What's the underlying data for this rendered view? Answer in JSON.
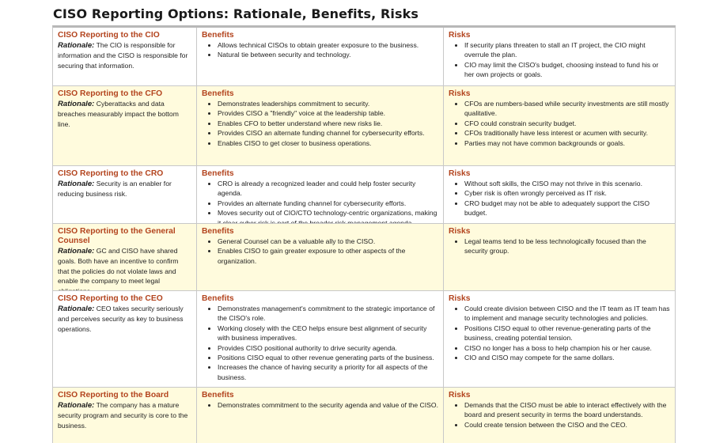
{
  "title": "CISO Reporting Options: Rationale, Benefits, Risks",
  "rationale_label": "Rationale:",
  "rows": [
    {
      "heading": "CISO Reporting to the CIO",
      "rationale": "The CIO is responsible for information and the CISO is responsible for securing that information.",
      "benefits_title": "Benefits",
      "benefits": [
        "Allows technical CISOs to obtain greater exposure to the business.",
        "Natural tie between security and technology."
      ],
      "risks_title": "Risks",
      "risks": [
        "If security plans threaten to stall an IT project, the CIO might overrule the plan.",
        "CIO may limit the CISO's budget, choosing instead to fund his or her own projects or goals."
      ]
    },
    {
      "heading": "CISO Reporting to the CFO",
      "rationale": "Cyberattacks and data breaches measurably impact the bottom line.",
      "benefits_title": "Benefits",
      "benefits": [
        "Demonstrates leaderships commitment to security.",
        "Provides CISO a \"friendly\" voice at the leadership table.",
        "Enables CFO to better understand where new risks lie.",
        "Provides CISO an alternate funding channel for cybersecurity efforts.",
        "Enables CISO to get closer to business operations."
      ],
      "risks_title": "Risks",
      "risks": [
        "CFOs are numbers-based while security investments are still mostly qualitative.",
        "CFO could constrain security budget.",
        "CFOs traditionally have less interest or acumen with security.",
        "Parties may not have common backgrounds or goals."
      ]
    },
    {
      "heading": "CISO Reporting to the CRO",
      "rationale": "Security is an enabler for reducing business risk.",
      "benefits_title": "Benefits",
      "benefits": [
        "CRO is already a recognized leader and could help foster security agenda.",
        "Provides an alternate funding channel for cybersecurity efforts.",
        "Moves security out of CIO/CTO technology-centric organizations, making it clear cyber risk is part of the broader risk management agenda."
      ],
      "risks_title": "Risks",
      "risks": [
        "Without soft skills, the CISO may not thrive in this scenario.",
        "Cyber risk is often wrongly perceived as IT risk.",
        "CRO budget may not be able to adequately support the CISO budget."
      ]
    },
    {
      "heading": "CISO Reporting to the General Counsel",
      "rationale": "GC and CISO have shared goals. Both have an incentive to confirm that the policies do not violate laws and enable the company to meet legal obligations.",
      "benefits_title": "Benefits",
      "benefits": [
        "General Counsel can be a valuable ally to the CISO.",
        "Enables CISO to gain greater exposure to other aspects of the organization."
      ],
      "risks_title": "Risks",
      "risks": [
        "Legal teams tend to be less technologically focused than the security group."
      ]
    },
    {
      "heading": "CISO Reporting to the CEO",
      "rationale": "CEO takes security seriously and perceives security as key to business operations.",
      "benefits_title": "Benefits",
      "benefits": [
        "Demonstrates management's commitment to the strategic importance of the CISO's role.",
        "Working closely with the CEO helps ensure best alignment of security with business imperatives.",
        "Provides CISO positional authority to drive security agenda.",
        "Positions CISO equal to other revenue generating parts of the business.",
        "Increases the chance of having security a priority for all aspects of the business."
      ],
      "risks_title": "Risks",
      "risks": [
        "Could create division between CISO and the IT team as IT team has to implement and manage security technologies and policies.",
        "Positions CISO equal to other revenue-generating parts of the business, creating potential tension.",
        "CISO no longer has a boss to help champion his or her cause.",
        "CIO and CISO may compete for the same dollars."
      ]
    },
    {
      "heading": "CISO Reporting to the Board",
      "rationale": "The company has a mature security program and security is core to the business.",
      "benefits_title": "Benefits",
      "benefits": [
        "Demonstrates commitment to the security agenda and value of the CISO."
      ],
      "risks_title": "Risks",
      "risks": [
        "Demands that the CISO must be able to interact effectively with the board and present security in terms the board understands.",
        "Could create tension between the CISO and the CEO."
      ]
    }
  ]
}
